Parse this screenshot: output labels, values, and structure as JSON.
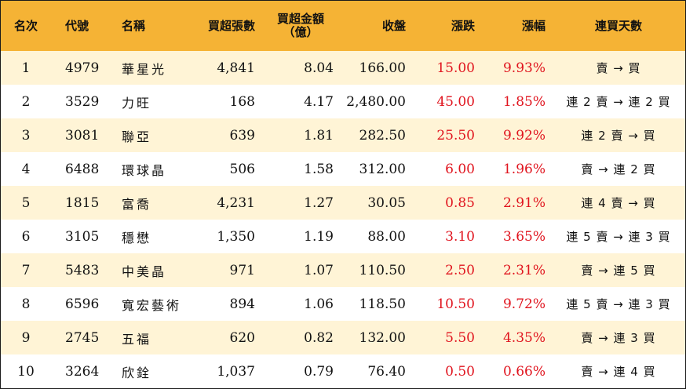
{
  "headers": {
    "rank": "名次",
    "code": "代號",
    "name": "名稱",
    "lots": "買超張數",
    "amount_line1": "買超金額",
    "amount_line2": "（億）",
    "close": "收盤",
    "change": "漲跌",
    "pct": "漲幅",
    "days": "連買天數"
  },
  "rows": [
    {
      "rank": "1",
      "code": "4979",
      "name": "華星光",
      "lots": "4,841",
      "amount": "8.04",
      "close": "166.00",
      "change": "15.00",
      "pct": "9.93%",
      "days": "賣 → 買"
    },
    {
      "rank": "2",
      "code": "3529",
      "name": "力旺",
      "lots": "168",
      "amount": "4.17",
      "close": "2,480.00",
      "change": "45.00",
      "pct": "1.85%",
      "days": "連 2 賣 → 連 2 買"
    },
    {
      "rank": "3",
      "code": "3081",
      "name": "聯亞",
      "lots": "639",
      "amount": "1.81",
      "close": "282.50",
      "change": "25.50",
      "pct": "9.92%",
      "days": "連 2 賣 → 買"
    },
    {
      "rank": "4",
      "code": "6488",
      "name": "環球晶",
      "lots": "506",
      "amount": "1.58",
      "close": "312.00",
      "change": "6.00",
      "pct": "1.96%",
      "days": "賣 → 連 2 買"
    },
    {
      "rank": "5",
      "code": "1815",
      "name": "富喬",
      "lots": "4,231",
      "amount": "1.27",
      "close": "30.05",
      "change": "0.85",
      "pct": "2.91%",
      "days": "連 4 賣 → 買"
    },
    {
      "rank": "6",
      "code": "3105",
      "name": "穩懋",
      "lots": "1,350",
      "amount": "1.19",
      "close": "88.00",
      "change": "3.10",
      "pct": "3.65%",
      "days": "連 5 賣 → 連 3 買"
    },
    {
      "rank": "7",
      "code": "5483",
      "name": "中美晶",
      "lots": "971",
      "amount": "1.07",
      "close": "110.50",
      "change": "2.50",
      "pct": "2.31%",
      "days": "賣 → 連 5 買"
    },
    {
      "rank": "8",
      "code": "6596",
      "name": "寬宏藝術",
      "lots": "894",
      "amount": "1.06",
      "close": "118.50",
      "change": "10.50",
      "pct": "9.72%",
      "days": "連 5 賣 → 連 3 買"
    },
    {
      "rank": "9",
      "code": "2745",
      "name": "五福",
      "lots": "620",
      "amount": "0.82",
      "close": "132.00",
      "change": "5.50",
      "pct": "4.35%",
      "days": "賣 → 連 3 買"
    },
    {
      "rank": "10",
      "code": "3264",
      "name": "欣銓",
      "lots": "1,037",
      "amount": "0.79",
      "close": "76.40",
      "change": "0.50",
      "pct": "0.66%",
      "days": "賣 → 連 4 買"
    }
  ],
  "colors": {
    "header_bg": "#f5b335",
    "stripe_bg": "#fff4d6",
    "up_red": "#e0141e"
  }
}
